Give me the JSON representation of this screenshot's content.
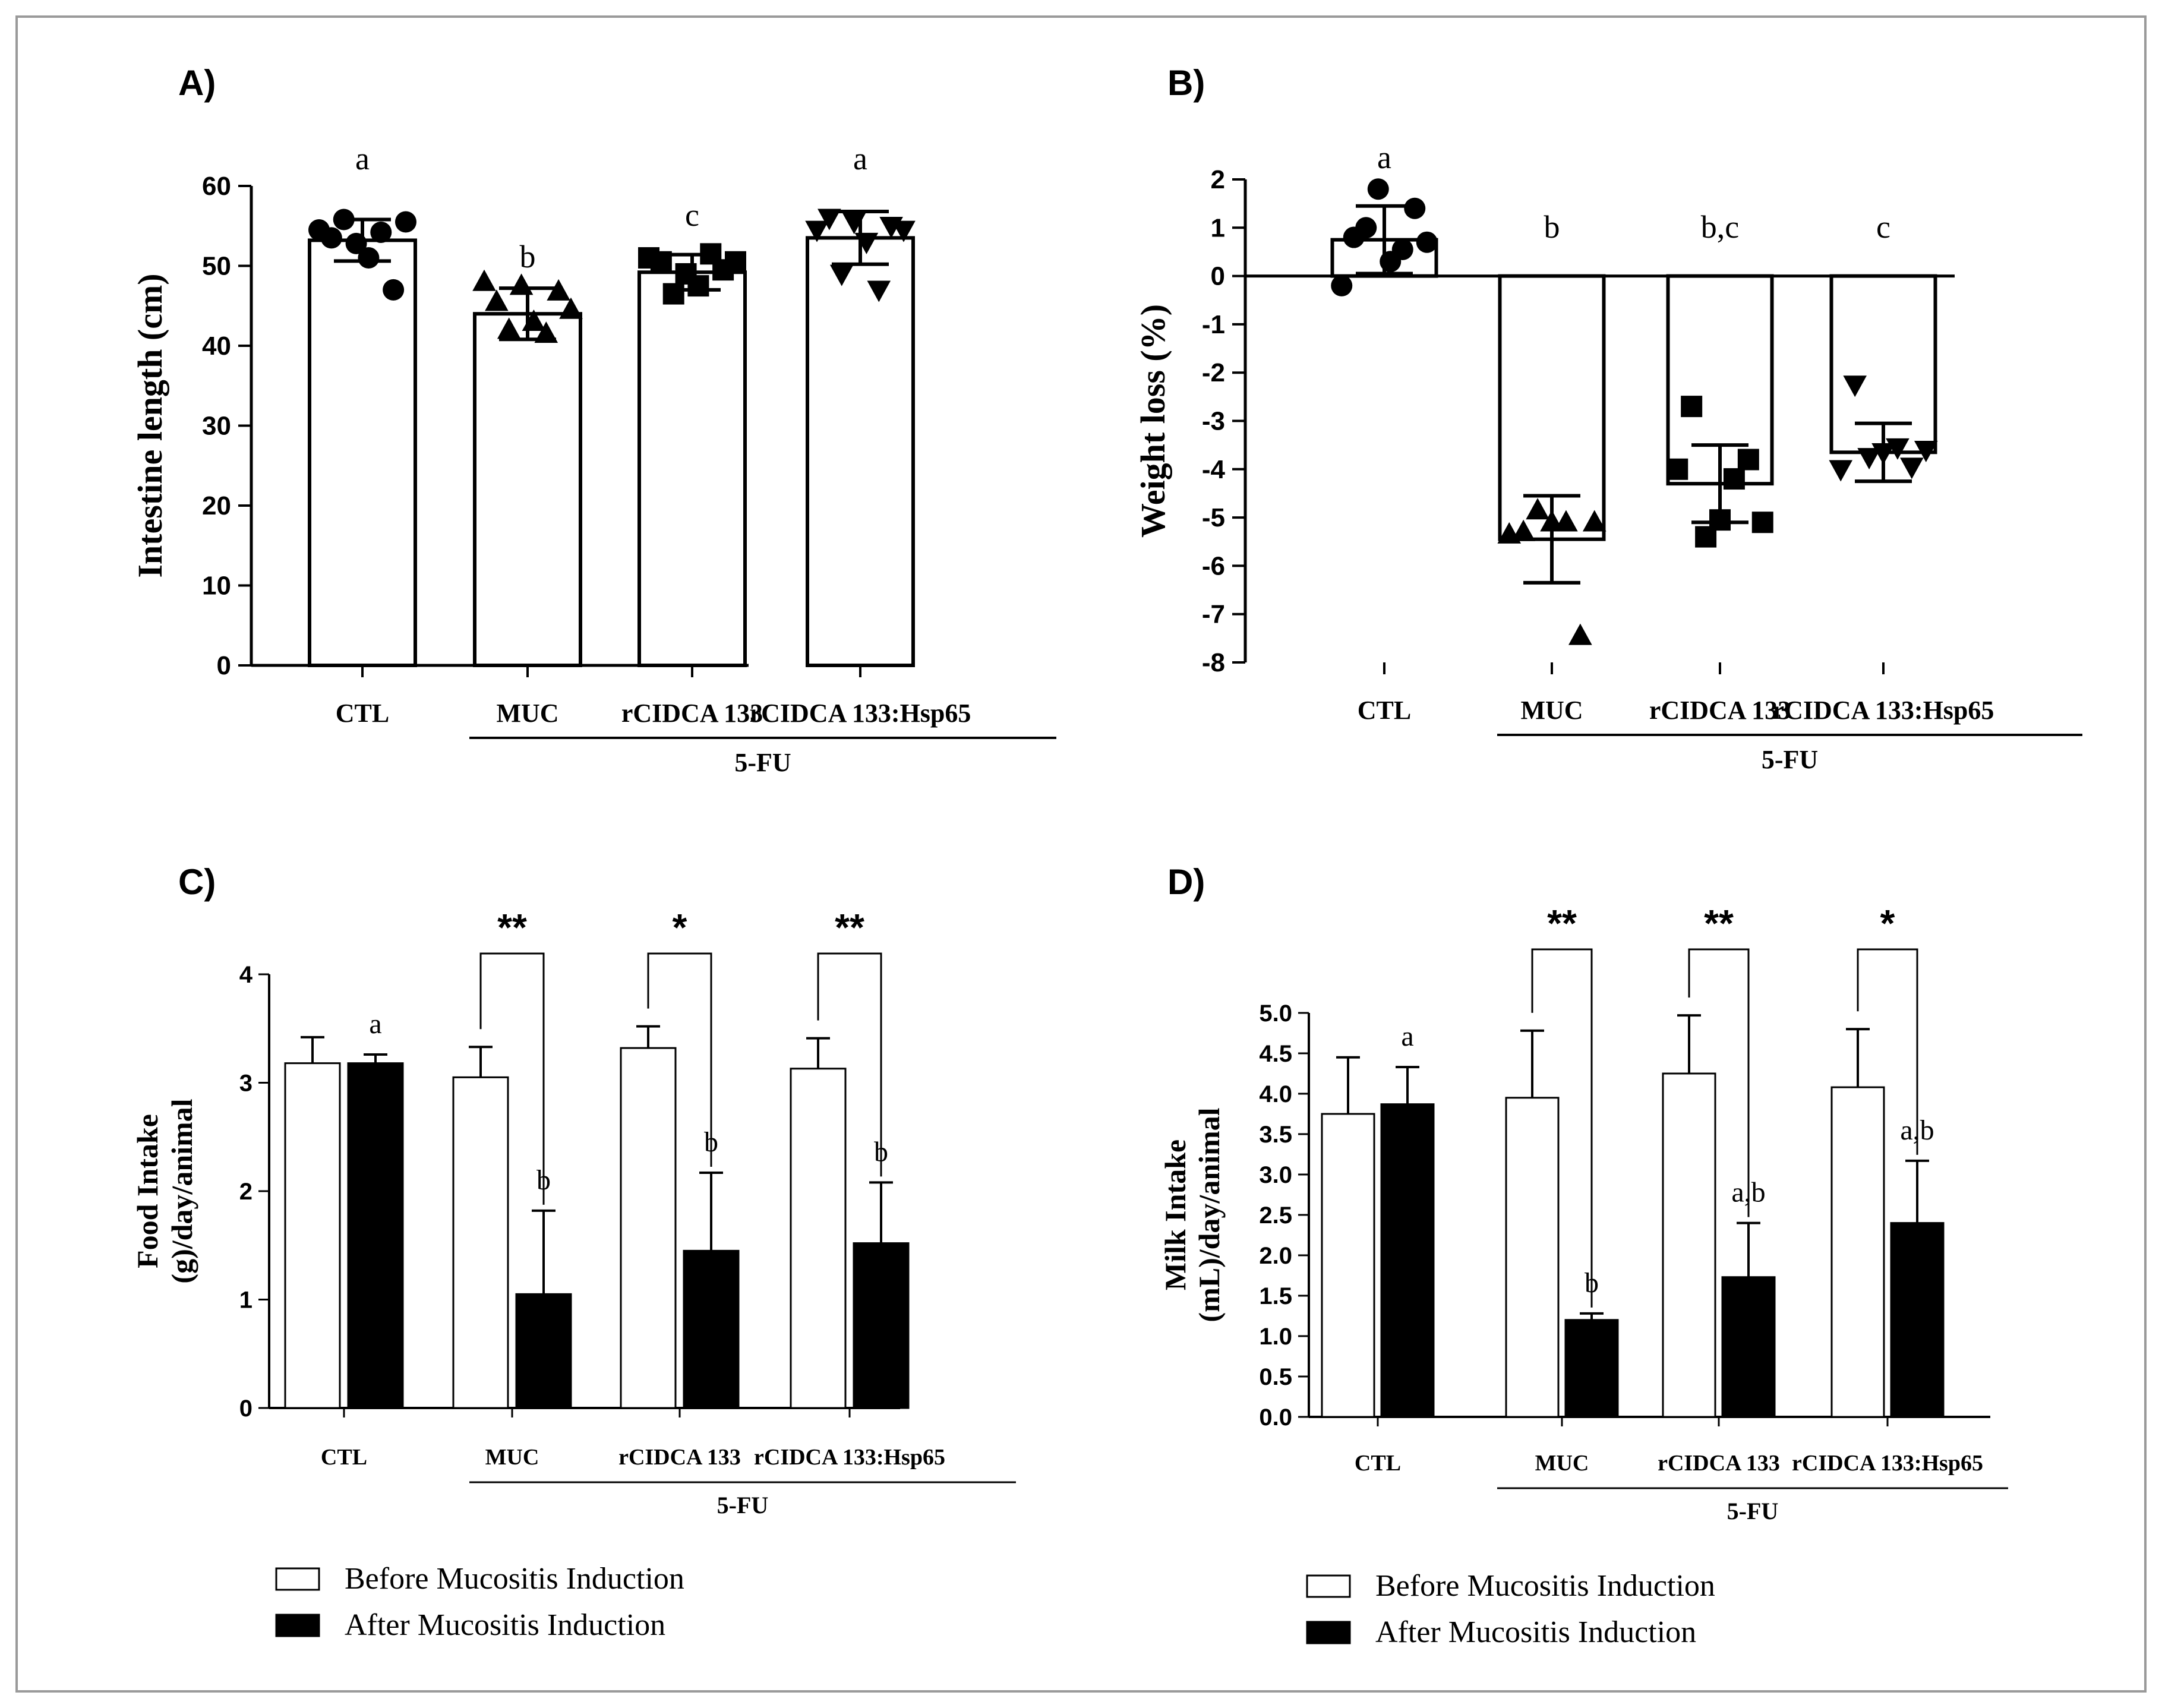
{
  "colors": {
    "frame": "#9a9a9a",
    "ink": "#000000",
    "before_fill": "#ffffff",
    "after_fill": "#000000"
  },
  "chart_data": [
    {
      "panel": "A)",
      "type": "bar",
      "ylabel": "Intestine length (cm)",
      "ylim": [
        0,
        60
      ],
      "yticks": [
        "0",
        "10",
        "20",
        "30",
        "40",
        "50",
        "60"
      ],
      "categories": [
        "CTL",
        "MUC",
        "rCIDCA 133",
        "rCIDCA 133:Hsp65"
      ],
      "group_label": "5-FU",
      "series": [
        {
          "name": "Intestine length",
          "values": [
            53.2,
            44.0,
            49.2,
            53.5
          ],
          "sd": [
            2.6,
            3.2,
            2.2,
            3.3
          ]
        }
      ],
      "markers": [
        "circle",
        "triangle-up",
        "square",
        "triangle-down"
      ],
      "points": [
        [
          54.5,
          53.5,
          55.8,
          52.8,
          51.0,
          54.2,
          47.0,
          55.5
        ],
        [
          48.0,
          45.5,
          42.0,
          47.5,
          43.0,
          41.5,
          46.8,
          44.5
        ],
        [
          51.0,
          50.5,
          46.5,
          49.0,
          47.5,
          51.5,
          49.5,
          50.5
        ],
        [
          54.5,
          56.0,
          49.0,
          55.5,
          53.0,
          47.0,
          55.0,
          54.5
        ]
      ],
      "letters": [
        "a",
        "b",
        "c",
        "a"
      ]
    },
    {
      "panel": "B)",
      "type": "bar",
      "ylabel": "Weight loss (%)",
      "ylim": [
        -8,
        2
      ],
      "yticks": [
        "2",
        "1",
        "0",
        "-1",
        "-2",
        "-3",
        "-4",
        "-5",
        "-6",
        "-7",
        "-8"
      ],
      "categories": [
        "CTL",
        "MUC",
        "rCIDCA 133",
        "rCIDCA 133:Hsp65"
      ],
      "group_label": "5-FU",
      "series": [
        {
          "name": "Weight loss",
          "values": [
            0.75,
            -5.45,
            -4.3,
            -3.65
          ],
          "sd": [
            0.7,
            0.9,
            0.8,
            0.6
          ]
        }
      ],
      "markers": [
        "circle",
        "triangle-up",
        "square",
        "triangle-down"
      ],
      "points": [
        [
          -0.2,
          0.8,
          1.0,
          1.8,
          0.3,
          0.55,
          1.4,
          0.7
        ],
        [
          -5.35,
          -5.3,
          -4.85,
          -5.1,
          -5.1,
          -7.45,
          -5.1
        ],
        [
          -4.0,
          -2.7,
          -5.4,
          -5.05,
          -4.2,
          -3.8,
          -5.1
        ],
        [
          -4.0,
          -2.25,
          -3.75,
          -3.65,
          -3.55,
          -3.95,
          -3.6
        ]
      ],
      "letters": [
        "a",
        "b",
        "b,c",
        "c"
      ]
    },
    {
      "panel": "C)",
      "type": "bar",
      "ylabel_line1": "Food Intake",
      "ylabel_line2": "(g)/day/animal",
      "ylim": [
        0,
        4
      ],
      "yticks": [
        "0",
        "1",
        "2",
        "3",
        "4"
      ],
      "categories": [
        "CTL",
        "MUC",
        "rCIDCA 133",
        "rCIDCA 133:Hsp65"
      ],
      "group_label": "5-FU",
      "series": [
        {
          "name": "Before Mucositis Induction",
          "values": [
            3.18,
            3.05,
            3.32,
            3.13
          ],
          "sd": [
            0.24,
            0.28,
            0.2,
            0.28
          ]
        },
        {
          "name": "After Mucositis Induction",
          "values": [
            3.18,
            1.05,
            1.45,
            1.52
          ],
          "sd": [
            0.08,
            0.77,
            0.72,
            0.56
          ]
        }
      ],
      "letters": [
        "a",
        "b",
        "b",
        "b"
      ],
      "significance": [
        "",
        "**",
        "*",
        "**"
      ],
      "legend": [
        "Before Mucositis Induction",
        "After Mucositis Induction"
      ]
    },
    {
      "panel": "D)",
      "type": "bar",
      "ylabel_line1": "Milk Intake",
      "ylabel_line2": "(mL)/day/animal",
      "ylim": [
        0,
        5
      ],
      "yticks": [
        "0.0",
        "0.5",
        "1.0",
        "1.5",
        "2.0",
        "2.5",
        "3.0",
        "3.5",
        "4.0",
        "4.5",
        "5.0"
      ],
      "categories": [
        "CTL",
        "MUC",
        "rCIDCA 133",
        "rCIDCA 133:Hsp65"
      ],
      "group_label": "5-FU",
      "series": [
        {
          "name": "Before Mucositis Induction",
          "values": [
            3.75,
            3.95,
            4.25,
            4.08
          ],
          "sd": [
            0.7,
            0.83,
            0.72,
            0.72
          ]
        },
        {
          "name": "After Mucositis Induction",
          "values": [
            3.87,
            1.2,
            1.73,
            2.4
          ],
          "sd": [
            0.46,
            0.08,
            0.67,
            0.77
          ]
        }
      ],
      "letters": [
        "a",
        "b",
        "a,b",
        "a,b"
      ],
      "significance": [
        "",
        "**",
        "**",
        "*"
      ],
      "legend": [
        "Before Mucositis Induction",
        "After Mucositis Induction"
      ]
    }
  ]
}
